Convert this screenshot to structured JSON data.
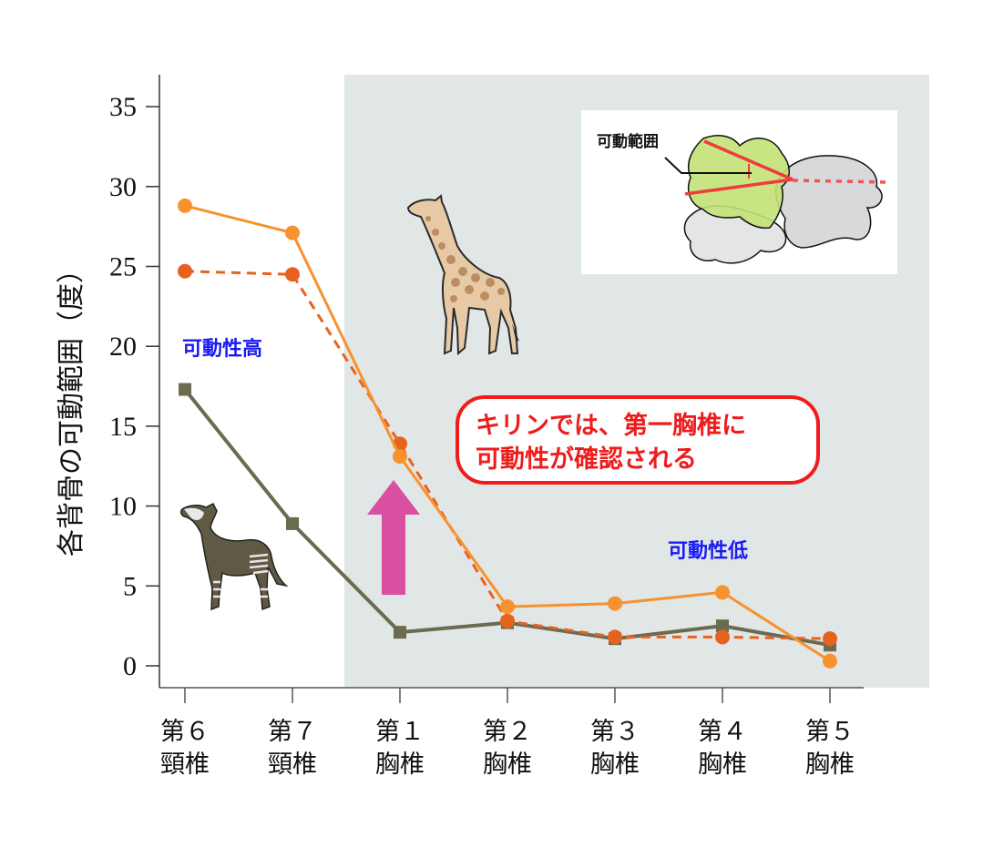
{
  "chart_data": {
    "type": "line",
    "title": "",
    "xlabel": "",
    "ylabel": "各背骨の可動範囲（度）",
    "ylim": [
      0,
      35
    ],
    "yticks": [
      0,
      5,
      10,
      15,
      20,
      25,
      30,
      35
    ],
    "grid": false,
    "categories": [
      {
        "line1": "第６",
        "line2": "頸椎"
      },
      {
        "line1": "第７",
        "line2": "頸椎"
      },
      {
        "line1": "第１",
        "line2": "胸椎"
      },
      {
        "line1": "第２",
        "line2": "胸椎"
      },
      {
        "line1": "第３",
        "line2": "胸椎"
      },
      {
        "line1": "第４",
        "line2": "胸椎"
      },
      {
        "line1": "第５",
        "line2": "胸椎"
      }
    ],
    "series": [
      {
        "name": "giraffe-solid",
        "style": "solid",
        "marker": "circle",
        "color": "#f7922e",
        "values": [
          28.8,
          27.1,
          13.1,
          3.7,
          3.9,
          4.6,
          0.3
        ]
      },
      {
        "name": "giraffe-dashed",
        "style": "dashed",
        "marker": "circle",
        "color": "#e8621f",
        "values": [
          24.7,
          24.5,
          13.9,
          2.8,
          1.8,
          1.8,
          1.7
        ]
      },
      {
        "name": "okapi",
        "style": "solid",
        "marker": "square",
        "color": "#6b6b4f",
        "values": [
          17.3,
          8.9,
          2.1,
          2.7,
          1.7,
          2.5,
          1.3
        ]
      }
    ],
    "shaded_region": {
      "from_category_index": 1.5,
      "to": "end",
      "color": "#e1e6e6"
    },
    "annotations": {
      "high_mobility": "可動性高",
      "low_mobility": "可動性低",
      "callout_line1": "キリンでは、第一胸椎に",
      "callout_line2": "可動性が確認される",
      "inset_label": "可動範囲"
    },
    "icons": {
      "giraffe": "giraffe-illustration",
      "okapi": "okapi-illustration",
      "arrow": "up-arrow",
      "inset": "vertebrae-diagram"
    }
  },
  "colors": {
    "shade": "#e1e6e6",
    "arrow": "#d94fa2",
    "callout_border": "#ef1c1c",
    "blue_text": "#1a1af5"
  }
}
